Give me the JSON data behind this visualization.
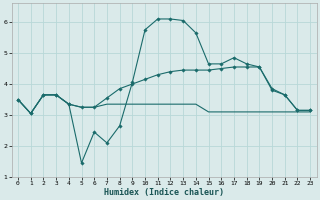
{
  "xlabel": "Humidex (Indice chaleur)",
  "bg_color": "#daeaea",
  "grid_color": "#b8d8d8",
  "line_color": "#1a6b6b",
  "xlim": [
    -0.5,
    23.5
  ],
  "ylim": [
    1.0,
    6.6
  ],
  "yticks": [
    1,
    2,
    3,
    4,
    5,
    6
  ],
  "xticks": [
    0,
    1,
    2,
    3,
    4,
    5,
    6,
    7,
    8,
    9,
    10,
    11,
    12,
    13,
    14,
    15,
    16,
    17,
    18,
    19,
    20,
    21,
    22,
    23
  ],
  "series1_x": [
    0,
    1,
    2,
    3,
    4,
    5,
    6,
    7,
    8,
    9,
    10,
    11,
    12,
    13,
    14,
    15,
    16,
    17,
    18,
    19,
    20,
    21,
    22,
    23
  ],
  "series1_y": [
    3.5,
    3.05,
    3.65,
    3.65,
    3.35,
    1.45,
    2.45,
    2.1,
    2.65,
    4.05,
    5.75,
    6.1,
    6.1,
    6.05,
    5.65,
    4.65,
    4.65,
    4.85,
    4.65,
    4.55,
    3.85,
    3.65,
    3.15,
    3.15
  ],
  "series2_x": [
    0,
    1,
    2,
    3,
    4,
    5,
    6,
    7,
    8,
    9,
    10,
    11,
    12,
    13,
    14,
    15,
    16,
    17,
    18,
    19,
    20,
    21,
    22,
    23
  ],
  "series2_y": [
    3.5,
    3.05,
    3.65,
    3.65,
    3.35,
    3.25,
    3.25,
    3.55,
    3.85,
    4.0,
    4.15,
    4.3,
    4.4,
    4.45,
    4.45,
    4.45,
    4.5,
    4.55,
    4.55,
    4.55,
    3.8,
    3.65,
    3.15,
    3.15
  ],
  "series3_x": [
    0,
    1,
    2,
    3,
    4,
    5,
    6,
    7,
    8,
    9,
    10,
    11,
    12,
    13,
    14,
    15,
    16,
    17,
    18,
    19,
    20,
    21,
    22,
    23
  ],
  "series3_y": [
    3.5,
    3.05,
    3.65,
    3.65,
    3.35,
    3.25,
    3.25,
    3.35,
    3.35,
    3.35,
    3.35,
    3.35,
    3.35,
    3.35,
    3.35,
    3.1,
    3.1,
    3.1,
    3.1,
    3.1,
    3.1,
    3.1,
    3.1,
    3.1
  ]
}
